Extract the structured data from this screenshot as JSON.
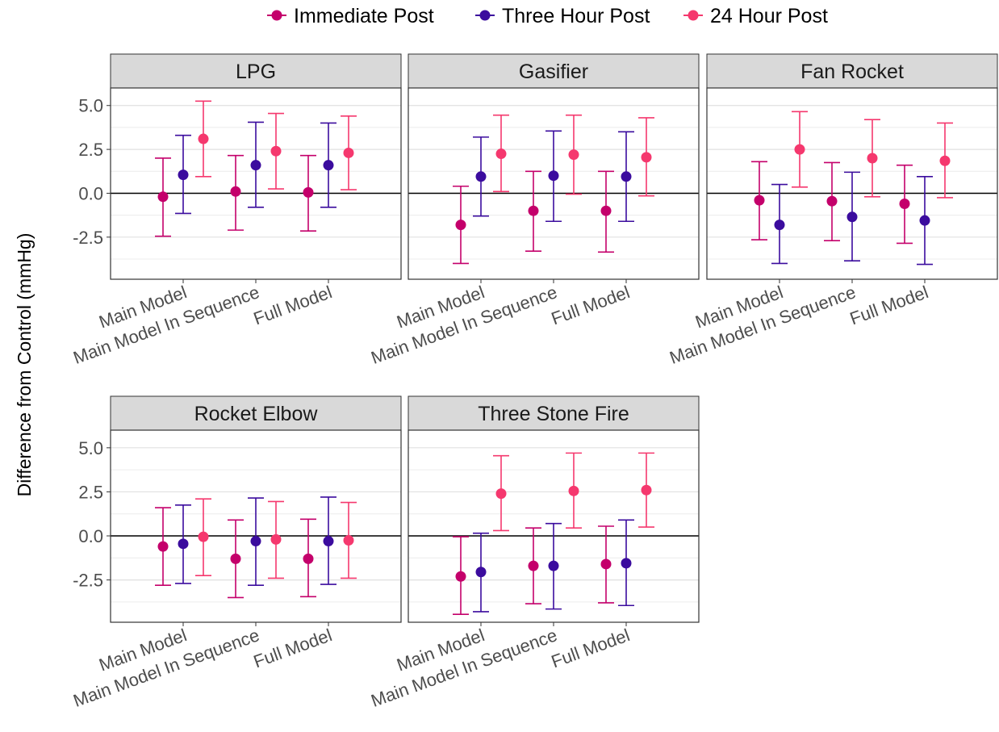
{
  "chart_data": {
    "type": "scatter",
    "subtype": "point-errorbar-facets",
    "ylabel": "Difference from Control (mmHg)",
    "xlabel": "",
    "ylim": [
      -4.9,
      6.0
    ],
    "yticks": [
      -2.5,
      0.0,
      2.5,
      5.0
    ],
    "ytick_labels": [
      "-2.5",
      "0.0",
      "2.5",
      "5.0"
    ],
    "reference_line_y": 0,
    "grid": true,
    "legend_position": "top",
    "categories": [
      "Main Model",
      "Main Model In Sequence",
      "Full Model"
    ],
    "series_names": [
      "Immediate Post",
      "Three Hour Post",
      "24 Hour Post"
    ],
    "series_colors": [
      "#C4006B",
      "#3B0C9E",
      "#F5386E"
    ],
    "facets": [
      {
        "title": "LPG",
        "series": [
          {
            "estimate": [
              -0.2,
              0.1,
              0.05
            ],
            "lower": [
              -2.45,
              -2.1,
              -2.15
            ],
            "upper": [
              2.0,
              2.15,
              2.15
            ]
          },
          {
            "estimate": [
              1.05,
              1.6,
              1.6
            ],
            "lower": [
              -1.15,
              -0.8,
              -0.8
            ],
            "upper": [
              3.3,
              4.05,
              4.0
            ]
          },
          {
            "estimate": [
              3.1,
              2.4,
              2.3
            ],
            "lower": [
              0.95,
              0.25,
              0.2
            ],
            "upper": [
              5.25,
              4.55,
              4.4
            ]
          }
        ]
      },
      {
        "title": "Gasifier",
        "series": [
          {
            "estimate": [
              -1.8,
              -1.0,
              -1.0
            ],
            "lower": [
              -4.0,
              -3.3,
              -3.35
            ],
            "upper": [
              0.4,
              1.25,
              1.25
            ]
          },
          {
            "estimate": [
              0.95,
              1.0,
              0.95
            ],
            "lower": [
              -1.3,
              -1.6,
              -1.6
            ],
            "upper": [
              3.2,
              3.55,
              3.5
            ]
          },
          {
            "estimate": [
              2.25,
              2.2,
              2.05
            ],
            "lower": [
              0.1,
              -0.05,
              -0.15
            ],
            "upper": [
              4.45,
              4.45,
              4.3
            ]
          }
        ]
      },
      {
        "title": "Fan Rocket",
        "series": [
          {
            "estimate": [
              -0.4,
              -0.45,
              -0.6
            ],
            "lower": [
              -2.65,
              -2.7,
              -2.85
            ],
            "upper": [
              1.8,
              1.75,
              1.6
            ]
          },
          {
            "estimate": [
              -1.8,
              -1.35,
              -1.55
            ],
            "lower": [
              -4.0,
              -3.85,
              -4.05
            ],
            "upper": [
              0.5,
              1.2,
              0.95
            ]
          },
          {
            "estimate": [
              2.5,
              2.0,
              1.85
            ],
            "lower": [
              0.35,
              -0.2,
              -0.25
            ],
            "upper": [
              4.65,
              4.2,
              4.0
            ]
          }
        ]
      },
      {
        "title": "Rocket Elbow",
        "series": [
          {
            "estimate": [
              -0.6,
              -1.3,
              -1.3
            ],
            "lower": [
              -2.8,
              -3.5,
              -3.45
            ],
            "upper": [
              1.6,
              0.9,
              0.95
            ]
          },
          {
            "estimate": [
              -0.45,
              -0.3,
              -0.3
            ],
            "lower": [
              -2.7,
              -2.8,
              -2.75
            ],
            "upper": [
              1.75,
              2.15,
              2.2
            ]
          },
          {
            "estimate": [
              -0.05,
              -0.2,
              -0.25
            ],
            "lower": [
              -2.25,
              -2.4,
              -2.4
            ],
            "upper": [
              2.1,
              1.95,
              1.9
            ]
          }
        ]
      },
      {
        "title": "Three Stone Fire",
        "series": [
          {
            "estimate": [
              -2.3,
              -1.7,
              -1.6
            ],
            "lower": [
              -4.45,
              -3.85,
              -3.8
            ],
            "upper": [
              -0.05,
              0.45,
              0.55
            ]
          },
          {
            "estimate": [
              -2.05,
              -1.7,
              -1.55
            ],
            "lower": [
              -4.3,
              -4.15,
              -3.95
            ],
            "upper": [
              0.15,
              0.7,
              0.9
            ]
          },
          {
            "estimate": [
              2.4,
              2.55,
              2.6
            ],
            "lower": [
              0.3,
              0.45,
              0.5
            ],
            "upper": [
              4.55,
              4.7,
              4.7
            ]
          }
        ]
      }
    ]
  }
}
